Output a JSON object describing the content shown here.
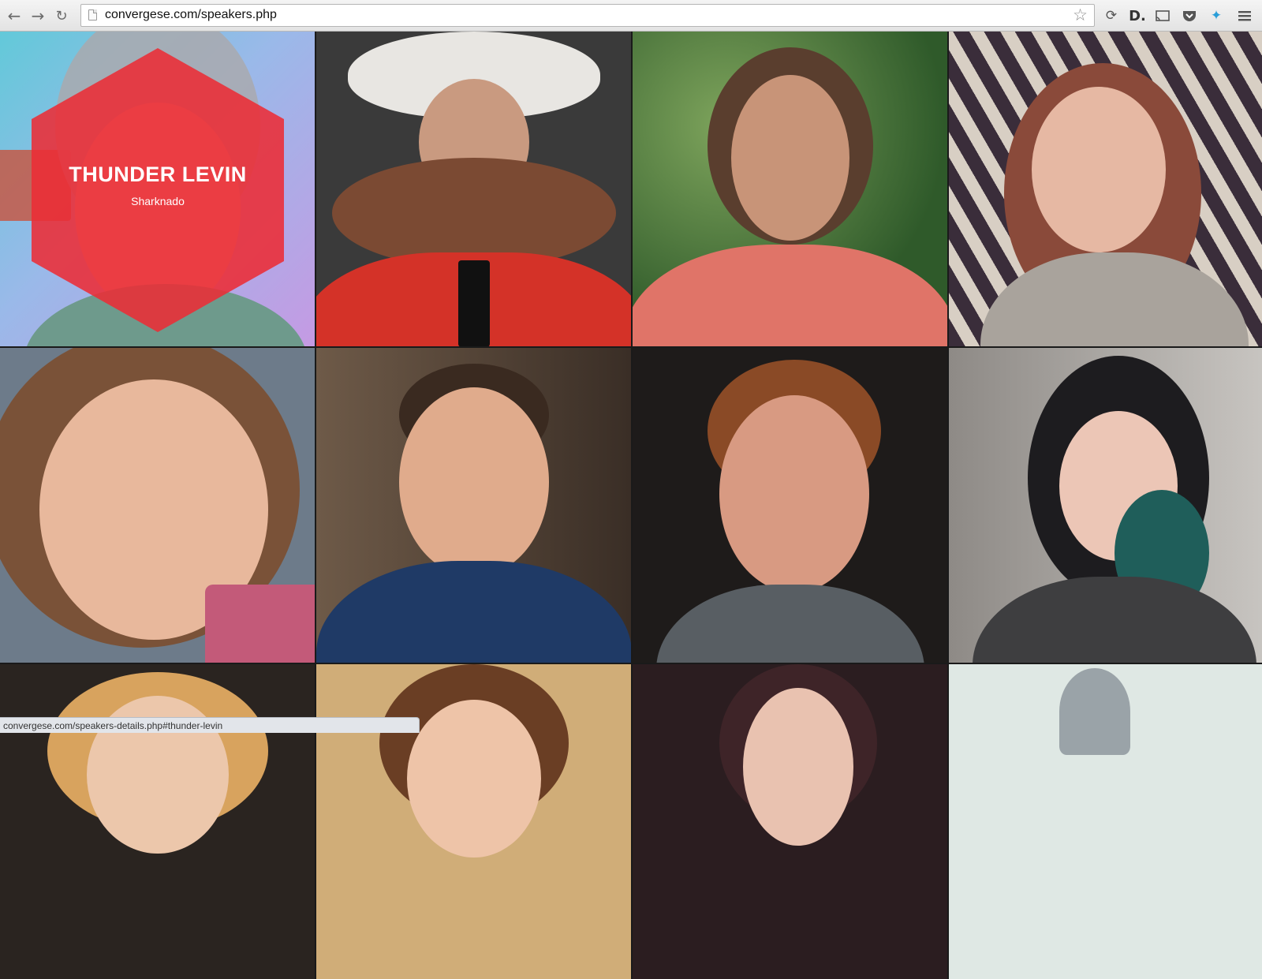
{
  "browser": {
    "url": "convergese.com/speakers.php",
    "status_url": "convergese.com/speakers-details.php#thunder-levin"
  },
  "hovered_speaker": {
    "name": "THUNDER LEVIN",
    "subtitle": "Sharknado"
  },
  "tiles": [
    {
      "id": "thunder-levin"
    },
    {
      "id": "cowboy-moustache"
    },
    {
      "id": "plaid-shirt-man"
    },
    {
      "id": "glasses-woman"
    },
    {
      "id": "curly-hair-woman"
    },
    {
      "id": "smiling-man"
    },
    {
      "id": "glasses-man"
    },
    {
      "id": "dark-hair-woman"
    },
    {
      "id": "blonde-woman"
    },
    {
      "id": "brunette-woman"
    },
    {
      "id": "dark-hair-woman-2"
    },
    {
      "id": "silver-sculpture"
    }
  ],
  "colors": {
    "hex_overlay": "#ec2c36",
    "grid_gap": "#1a1a1a"
  }
}
